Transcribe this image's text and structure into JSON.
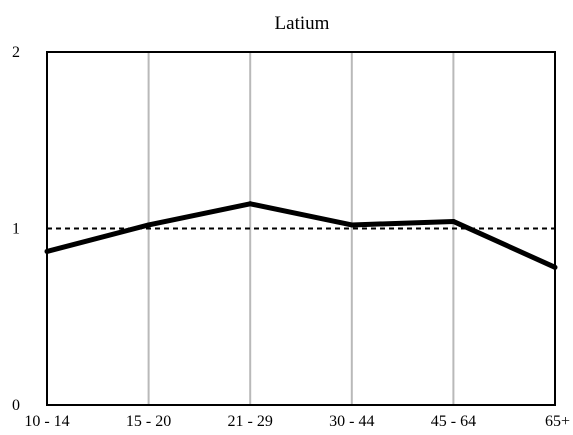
{
  "chart_data": {
    "type": "line",
    "title": "Latium",
    "xlabel": "",
    "ylabel": "",
    "categories": [
      "10 - 14",
      "15 - 20",
      "21 - 29",
      "30 - 44",
      "45 - 64",
      "65+"
    ],
    "series": [
      {
        "values": [
          0.87,
          1.02,
          1.14,
          1.02,
          1.04,
          0.78
        ]
      }
    ],
    "reference_line": 1,
    "ylim": [
      0,
      2
    ],
    "yticks": [
      "0",
      "1",
      "2"
    ],
    "grid": "vertical",
    "legend": "none"
  }
}
